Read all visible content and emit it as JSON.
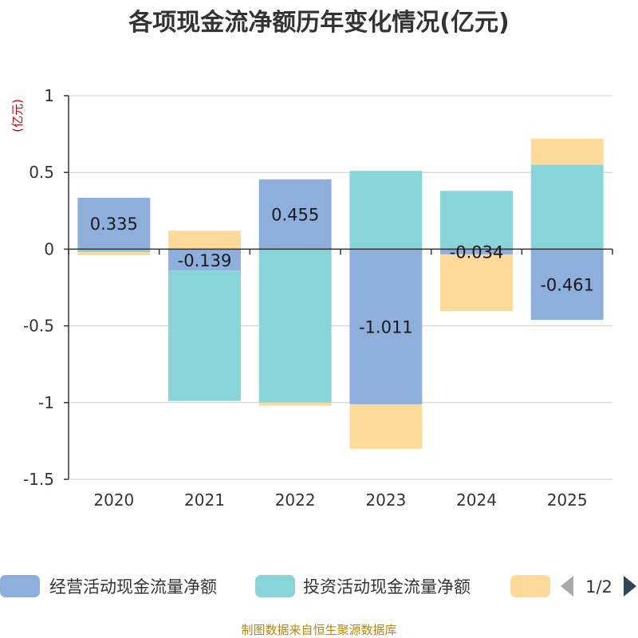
{
  "chart_data": {
    "type": "bar",
    "stacked": true,
    "title": "各项现金流净额历年变化情况(亿元)",
    "ylabel": "(亿元)",
    "xlabel": "",
    "ylim": [
      -1.5,
      1
    ],
    "yticks": [
      1,
      0.5,
      0,
      -0.5,
      -1,
      -1.5
    ],
    "ytick_labels": [
      "1",
      "0.5",
      "0",
      "-0.5",
      "-1",
      "-1.5"
    ],
    "categories": [
      "2020",
      "2021",
      "2022",
      "2023",
      "2024",
      "2025"
    ],
    "series": [
      {
        "name": "经营活动现金流量净额",
        "color": "#8eaedb",
        "values": [
          0.335,
          -0.139,
          0.455,
          -1.011,
          -0.034,
          -0.461
        ],
        "labels": [
          "0.335",
          "-0.139",
          "0.455",
          "-1.011",
          "-0.034",
          "-0.461"
        ]
      },
      {
        "name": "投资活动现金流量净额",
        "color": "#87d5d8",
        "values": [
          -0.02,
          -0.85,
          -1.0,
          0.51,
          0.38,
          0.55
        ]
      },
      {
        "name": "",
        "color": "#fdd99a",
        "values": [
          -0.02,
          0.12,
          -0.02,
          -0.29,
          -0.37,
          0.17
        ]
      }
    ],
    "legend": {
      "position": "bottom",
      "page_indicator": "1/2"
    }
  },
  "footer": {
    "source": "制图数据来自恒生聚源数据库"
  },
  "colors": {
    "title": "#333333",
    "unit": "#cc0000",
    "footer": "#b8860b",
    "grid": "#cccccc",
    "axis": "#333333"
  }
}
